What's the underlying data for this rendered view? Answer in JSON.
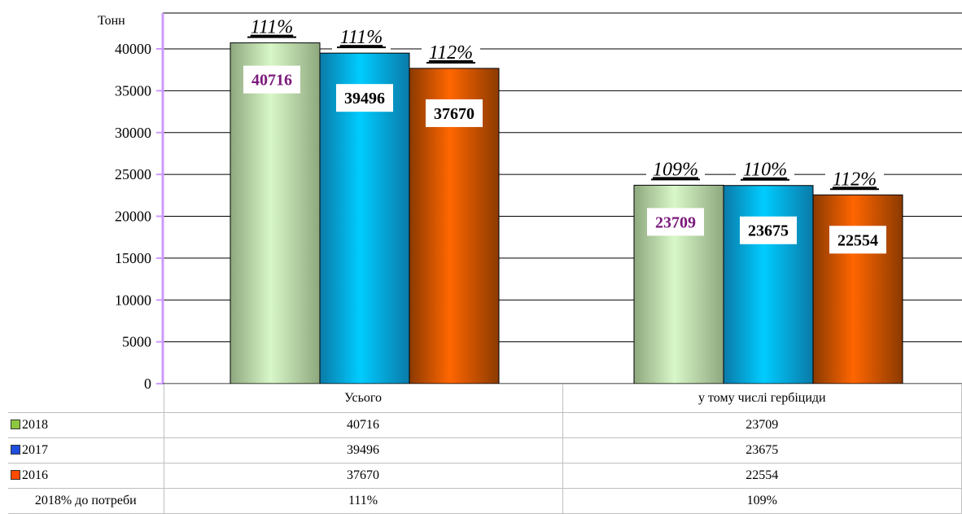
{
  "chart_data": {
    "type": "bar",
    "ylabel": "Тонн",
    "ylim": [
      0,
      40000
    ],
    "yticks": [
      0,
      5000,
      10000,
      15000,
      20000,
      25000,
      30000,
      35000,
      40000
    ],
    "categories": [
      "Усього",
      "у тому числі гербіциди"
    ],
    "series": [
      {
        "name": "2018",
        "values": [
          40716,
          23709
        ],
        "colors": [
          "#8ea87e",
          "#d8f7c8"
        ],
        "swatch": "#8dc63f",
        "label_color": "#7b1a7b"
      },
      {
        "name": "2017",
        "values": [
          39496,
          23675
        ],
        "colors": [
          "#0a7aa8",
          "#00ccff"
        ],
        "swatch": "#1f4fe0",
        "label_color": "#000000"
      },
      {
        "name": "2016",
        "values": [
          37670,
          22554
        ],
        "colors": [
          "#8b3a00",
          "#ff6600"
        ],
        "swatch": "#ff4a00",
        "label_color": "#000000"
      }
    ],
    "percent_labels": [
      [
        "111%",
        "111%",
        "112%"
      ],
      [
        "109%",
        "110%",
        "112%"
      ]
    ],
    "grid": true,
    "axis_color": "#cc99ff"
  },
  "table": {
    "rows": [
      {
        "label": "2018",
        "values": [
          "40716",
          "23709"
        ]
      },
      {
        "label": "2017",
        "values": [
          "39496",
          "23675"
        ]
      },
      {
        "label": "2016",
        "values": [
          "37670",
          "22554"
        ]
      },
      {
        "label": "2018% до потреби",
        "values": [
          "111%",
          "109%"
        ]
      }
    ]
  }
}
